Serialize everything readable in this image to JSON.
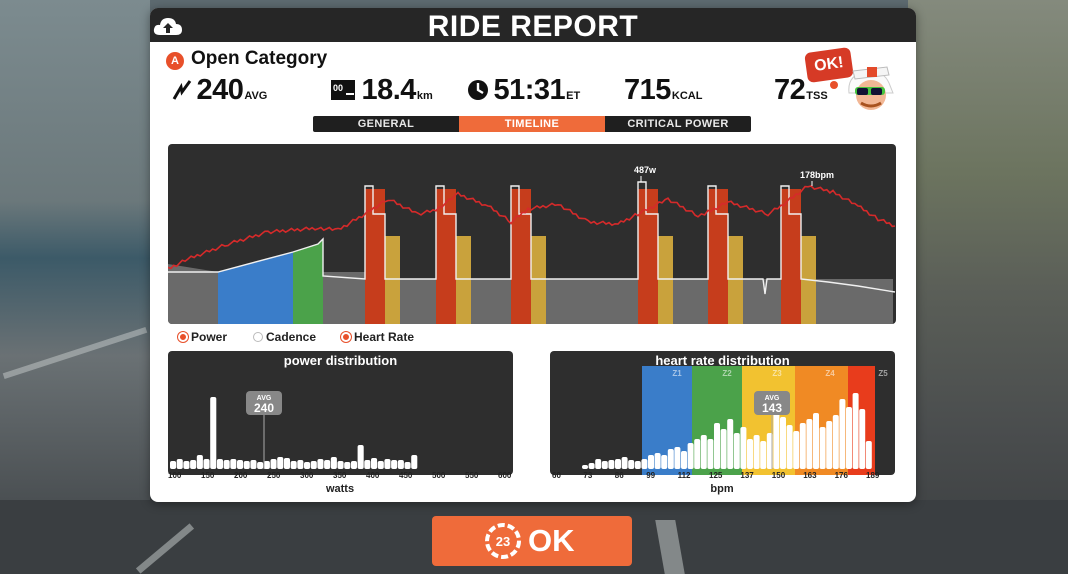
{
  "header": {
    "title": "RIDE REPORT",
    "upload_icon": "cloud-upload-icon"
  },
  "category": {
    "badge": "A",
    "name": "Open Category"
  },
  "stats": {
    "power_value": "240",
    "power_unit": "AVG",
    "distance_value": "18.4",
    "distance_unit": "km",
    "distance_icon_text": "00",
    "time_value": "51:31",
    "time_unit": "ET",
    "energy_value": "715",
    "energy_unit": "KCAL",
    "tss_value": "72",
    "tss_unit": "TSS"
  },
  "badge": {
    "text": "OK!"
  },
  "tabs": [
    {
      "label": "GENERAL",
      "active": false
    },
    {
      "label": "TIMELINE",
      "active": true
    },
    {
      "label": "CRITICAL POWER",
      "active": false
    }
  ],
  "timeline": {
    "peak_power_label": "487w",
    "peak_hr_label": "178bpm",
    "colors": {
      "gray": "#6a6a6a",
      "blue": "#3a7dc9",
      "green": "#4ba24a",
      "red": "#c63d1c",
      "gold": "#c9a23c",
      "hr_line": "#d62a2a"
    }
  },
  "legend": [
    {
      "label": "Power",
      "on": true
    },
    {
      "label": "Cadence",
      "on": false
    },
    {
      "label": "Heart Rate",
      "on": true
    }
  ],
  "power_distribution": {
    "title": "power distribution",
    "avg_label": "AVG",
    "avg_value": "240",
    "ticks": [
      "100",
      "150",
      "200",
      "250",
      "300",
      "350",
      "400",
      "450",
      "500",
      "550",
      "600"
    ],
    "axis_title": "watts"
  },
  "hr_distribution": {
    "title": "heart rate distribution",
    "avg_label": "AVG",
    "avg_value": "143",
    "zones": [
      "Z1",
      "Z2",
      "Z3",
      "Z4",
      "Z5"
    ],
    "zone_colors": [
      "#3a7dc9",
      "#4ba24a",
      "#f2c230",
      "#f08a24",
      "#e83c1c"
    ],
    "ticks": [
      "60",
      "73",
      "86",
      "99",
      "112",
      "125",
      "137",
      "150",
      "163",
      "176",
      "189"
    ],
    "axis_title": "bpm"
  },
  "ok_button": {
    "label": "OK",
    "timer": "23"
  }
}
